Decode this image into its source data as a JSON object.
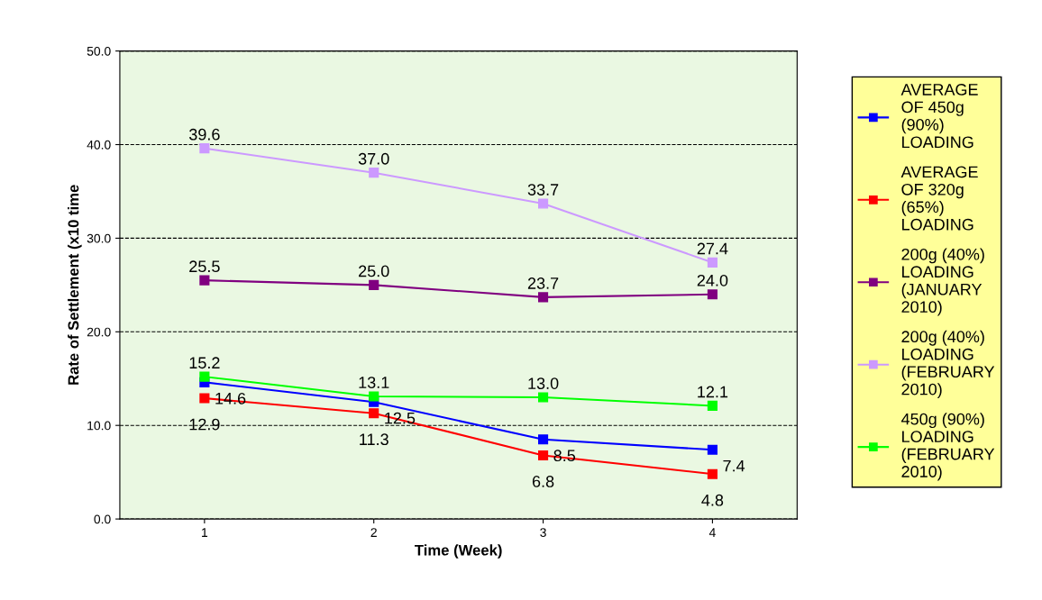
{
  "chart_data": {
    "type": "line",
    "xlabel": "Time (Week)",
    "ylabel": "Rate of Settlement (x10 time",
    "categories": [
      "1",
      "2",
      "3",
      "4"
    ],
    "series": [
      {
        "name": "AVERAGE\nOF 450g\n(90%)\nLOADING",
        "color": "#0000ff",
        "values": [
          14.6,
          12.5,
          8.5,
          7.4
        ],
        "value_labels": [
          "14.6",
          "12.5",
          "8.5",
          "7.4"
        ]
      },
      {
        "name": "AVERAGE\nOF 320g\n(65%)\nLOADING",
        "color": "#ff0000",
        "values": [
          12.9,
          11.3,
          6.8,
          4.8
        ],
        "value_labels": [
          "12.9",
          "11.3",
          "6.8",
          "4.8"
        ]
      },
      {
        "name": "200g (40%)\nLOADING\n(JANUARY\n2010)",
        "color": "#800080",
        "values": [
          25.5,
          25.0,
          23.7,
          24.0
        ],
        "value_labels": [
          "25.5",
          "25.0",
          "23.7",
          "24.0"
        ]
      },
      {
        "name": "200g (40%)\nLOADING\n(FEBRUARY\n2010)",
        "color": "#cc99ff",
        "values": [
          39.6,
          37.0,
          33.7,
          27.4
        ],
        "value_labels": [
          "39.6",
          "37.0",
          "33.7",
          "27.4"
        ]
      },
      {
        "name": "450g (90%)\nLOADING\n(FEBRUARY\n2010)",
        "color": "#00ff00",
        "values": [
          15.2,
          13.1,
          13.0,
          12.1
        ],
        "value_labels": [
          "15.2",
          "13.1",
          "13.0",
          "12.1"
        ]
      }
    ],
    "ylim": [
      0,
      50
    ],
    "yticks": [
      {
        "value": 0,
        "label": "0.0"
      },
      {
        "value": 10,
        "label": "10.0"
      },
      {
        "value": 20,
        "label": "20.0"
      },
      {
        "value": 30,
        "label": "30.0"
      },
      {
        "value": 40,
        "label": "40.0"
      },
      {
        "value": 50,
        "label": "50.0"
      }
    ],
    "grid": "y",
    "legend": "right",
    "marker": "square",
    "line_style": "solid"
  }
}
